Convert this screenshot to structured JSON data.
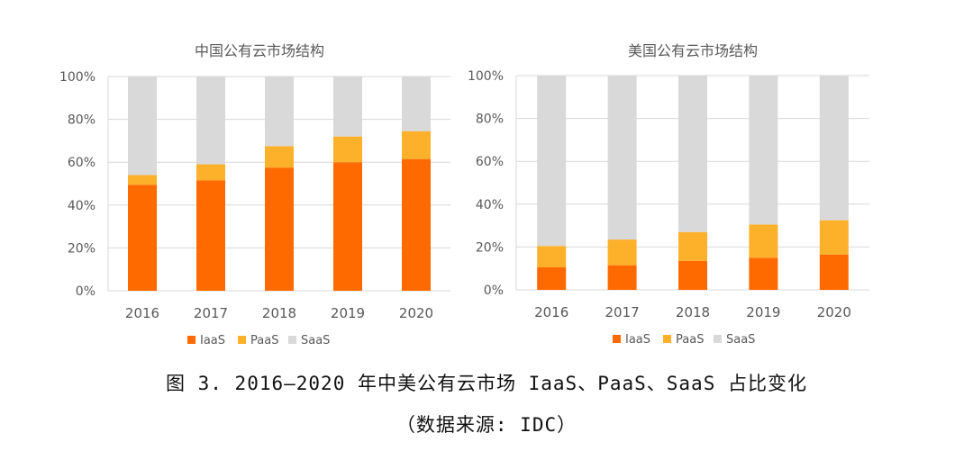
{
  "chart_data": [
    {
      "type": "bar",
      "stacked": true,
      "title": "中国公有云市场结构",
      "categories": [
        "2016",
        "2017",
        "2018",
        "2019",
        "2020"
      ],
      "series": [
        {
          "name": "IaaS",
          "values": [
            49.5,
            51.5,
            57.5,
            60.0,
            61.5
          ]
        },
        {
          "name": "PaaS",
          "values": [
            4.5,
            7.5,
            10.0,
            12.0,
            13.0
          ]
        },
        {
          "name": "SaaS",
          "values": [
            46.0,
            41.0,
            32.5,
            28.0,
            25.5
          ]
        }
      ],
      "yticks": [
        "0%",
        "20%",
        "40%",
        "60%",
        "80%",
        "100%"
      ],
      "ylim": [
        0,
        100
      ],
      "xlabel": "",
      "ylabel": "",
      "legend": "bottom"
    },
    {
      "type": "bar",
      "stacked": true,
      "title": "美国公有云市场结构",
      "categories": [
        "2016",
        "2017",
        "2018",
        "2019",
        "2020"
      ],
      "series": [
        {
          "name": "IaaS",
          "values": [
            10.5,
            11.5,
            13.5,
            15.0,
            16.5
          ]
        },
        {
          "name": "PaaS",
          "values": [
            10.0,
            12.0,
            13.5,
            15.5,
            16.0
          ]
        },
        {
          "name": "SaaS",
          "values": [
            79.5,
            76.5,
            73.0,
            69.5,
            67.5
          ]
        }
      ],
      "yticks": [
        "0%",
        "20%",
        "40%",
        "60%",
        "80%",
        "100%"
      ],
      "ylim": [
        0,
        100
      ],
      "xlabel": "",
      "ylabel": "",
      "legend": "bottom"
    }
  ],
  "colors": {
    "IaaS": "#FF6A00",
    "PaaS": "#FDB02A",
    "SaaS": "#D9D9D9",
    "grid": "#D9D9D9",
    "text": "#595959"
  },
  "caption": {
    "main": "图 3. 2016—2020 年中美公有云市场 IaaS、PaaS、SaaS 占比变化",
    "source": "（数据来源: IDC）"
  }
}
